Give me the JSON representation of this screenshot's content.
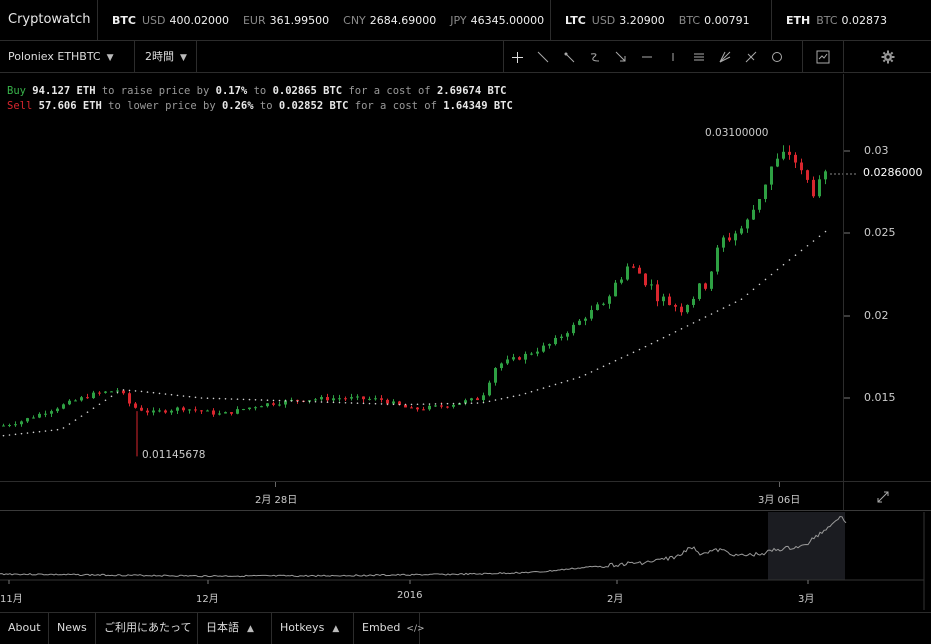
{
  "brand": "Cryptowatch",
  "ticker": {
    "btc": {
      "symbol": "BTC",
      "prices": [
        {
          "cur": "USD",
          "val": "400.02000"
        },
        {
          "cur": "EUR",
          "val": "361.99500"
        },
        {
          "cur": "CNY",
          "val": "2684.69000"
        },
        {
          "cur": "JPY",
          "val": "46345.00000"
        }
      ]
    },
    "ltc": {
      "symbol": "LTC",
      "prices": [
        {
          "cur": "USD",
          "val": "3.20900"
        },
        {
          "cur": "BTC",
          "val": "0.00791"
        }
      ]
    },
    "eth": {
      "symbol": "ETH",
      "prices": [
        {
          "cur": "BTC",
          "val": "0.02873"
        }
      ]
    }
  },
  "toolbar": {
    "market": "Poloniex ETHBTC",
    "period": "2時間"
  },
  "orderinfo": {
    "buy": {
      "side": "Buy",
      "amount": "94.127 ETH",
      "t1": "to raise price by",
      "pct": "0.17%",
      "t2": "to",
      "price": "0.02865 BTC",
      "t3": "for a cost of",
      "cost": "2.69674 BTC"
    },
    "sell": {
      "side": "Sell",
      "amount": "57.606 ETH",
      "t1": "to lower price by",
      "pct": "0.26%",
      "t2": "to",
      "price": "0.02852 BTC",
      "t3": "for a cost of",
      "cost": "1.64349 BTC"
    }
  },
  "price_axis": {
    "ticks": [
      "0.03",
      "0.025",
      "0.02",
      "0.015"
    ],
    "current": "0.0286000",
    "high_label": "0.03100000",
    "low_label": "0.01145678"
  },
  "time_axis": [
    "2月 28日",
    "3月 06日"
  ],
  "overview_axis": [
    "11月",
    "12月",
    "2016",
    "2月",
    "3月"
  ],
  "footer": {
    "about": "About",
    "news": "News",
    "terms": "ご利用にあたって",
    "language": "日本語",
    "hotkeys": "Hotkeys",
    "embed": "Embed"
  },
  "colors": {
    "up": "#2ea043",
    "down": "#d9262e",
    "bg": "#000000"
  },
  "chart_data": {
    "type": "candlestick",
    "yticks": [
      0.015,
      0.02,
      0.025,
      0.03
    ],
    "high": 0.031,
    "low": 0.01145678,
    "last": 0.0286
  }
}
